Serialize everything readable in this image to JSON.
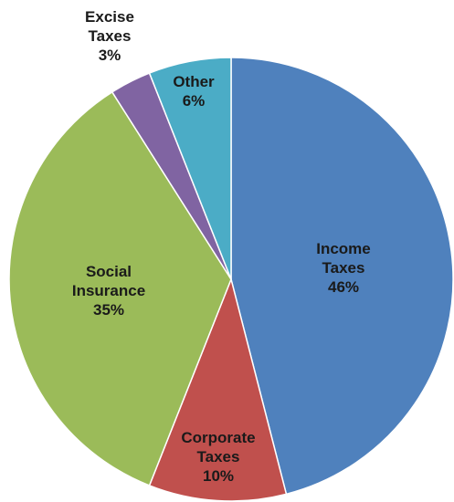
{
  "chart_data": {
    "type": "pie",
    "title": "",
    "start_angle_deg": 0,
    "direction": "clockwise",
    "slices": [
      {
        "label": [
          "Income",
          "Taxes"
        ],
        "value": 46,
        "value_label": "46%",
        "color": "#4f81bd"
      },
      {
        "label": [
          "Corporate",
          "Taxes"
        ],
        "value": 10,
        "value_label": "10%",
        "color": "#c0504d"
      },
      {
        "label": [
          "Social",
          "Insurance"
        ],
        "value": 35,
        "value_label": "35%",
        "color": "#9bbb59"
      },
      {
        "label": [
          "Excise",
          "Taxes"
        ],
        "value": 3,
        "value_label": "3%",
        "color": "#8064a2"
      },
      {
        "label": [
          "Other"
        ],
        "value": 6,
        "value_label": "6%",
        "color": "#4bacc6"
      }
    ]
  }
}
